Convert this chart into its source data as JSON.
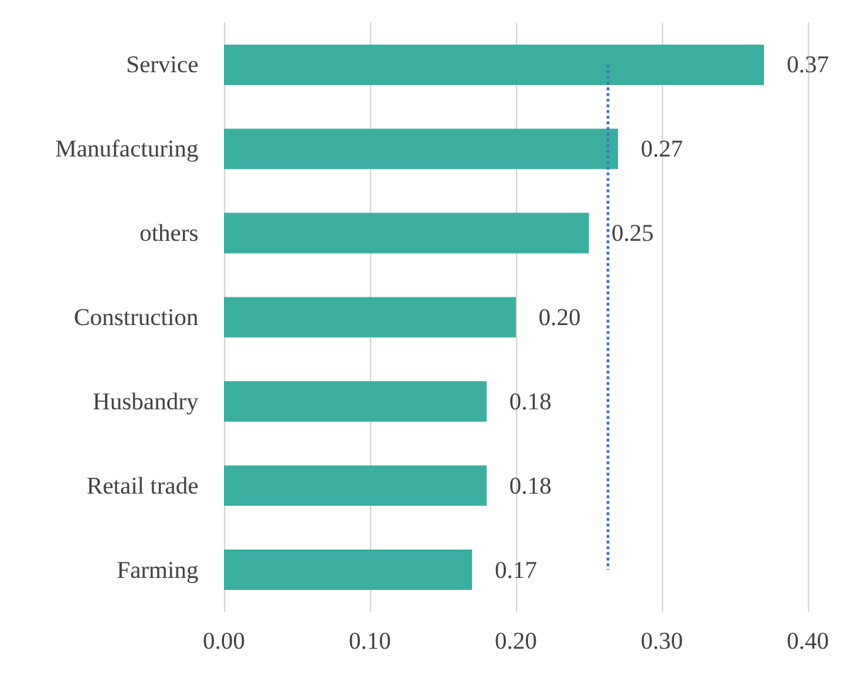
{
  "chart_data": {
    "type": "bar",
    "orientation": "horizontal",
    "categories": [
      "Service",
      "Manufacturing",
      "others",
      "Construction",
      "Husbandry",
      "Retail trade",
      "Farming"
    ],
    "values": [
      0.37,
      0.27,
      0.25,
      0.2,
      0.18,
      0.18,
      0.17
    ],
    "value_labels": [
      "0.37",
      "0.27",
      "0.25",
      "0.20",
      "0.18",
      "0.18",
      "0.17"
    ],
    "color": "#3aaf9f",
    "xlim": [
      0,
      0.4
    ],
    "xticks": [
      {
        "value": 0,
        "label": "0.00"
      },
      {
        "value": 0.1,
        "label": "0.10"
      },
      {
        "value": 0.2,
        "label": "0.20"
      },
      {
        "value": 0.3,
        "label": "0.30"
      },
      {
        "value": 0.4,
        "label": "0.40"
      }
    ],
    "grid": "x",
    "ref_lines": [
      {
        "axis": "x",
        "value": 0.263,
        "color": "#4472c4",
        "line_style": "dotted"
      }
    ]
  }
}
